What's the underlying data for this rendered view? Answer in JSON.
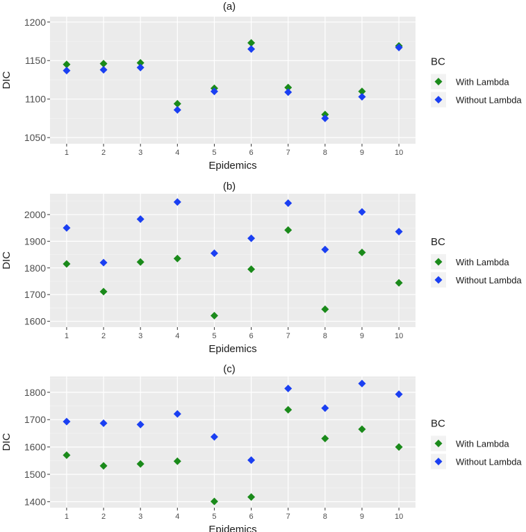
{
  "chart_data": [
    {
      "type": "scatter",
      "title": "(a)",
      "xlabel": "Epidemics",
      "ylabel": "DIC",
      "x": [
        1,
        2,
        3,
        4,
        5,
        6,
        7,
        8,
        9,
        10
      ],
      "x_tick_labels": [
        "1",
        "2",
        "3",
        "4",
        "5",
        "6",
        "7",
        "8",
        "9",
        "10"
      ],
      "y_ticks": [
        1050,
        1100,
        1150,
        1200
      ],
      "y_tick_labels": [
        "1050",
        "1100",
        "1150",
        "1200"
      ],
      "ylim": [
        1042,
        1207
      ],
      "legend_title": "BC",
      "grid": true,
      "series": [
        {
          "name": "With Lambda",
          "color": "#1a8a1a",
          "values": [
            1145,
            1146,
            1147,
            1094,
            1114,
            1173,
            1115,
            1080,
            1110,
            1169
          ]
        },
        {
          "name": "Without Lambda",
          "color": "#1a3ff2",
          "values": [
            1137,
            1138,
            1141,
            1086,
            1110,
            1165,
            1109,
            1075,
            1103,
            1167
          ]
        }
      ]
    },
    {
      "type": "scatter",
      "title": "(b)",
      "xlabel": "Epidemics",
      "ylabel": "DIC",
      "x": [
        1,
        2,
        3,
        4,
        5,
        6,
        7,
        8,
        9,
        10
      ],
      "x_tick_labels": [
        "1",
        "2",
        "3",
        "4",
        "5",
        "6",
        "7",
        "8",
        "9",
        "10"
      ],
      "y_ticks": [
        1600,
        1700,
        1800,
        1900,
        2000
      ],
      "y_tick_labels": [
        "1600",
        "1700",
        "1800",
        "1900",
        "2000"
      ],
      "ylim": [
        1578,
        2078
      ],
      "legend_title": "BC",
      "grid": true,
      "series": [
        {
          "name": "With Lambda",
          "color": "#1a8a1a",
          "values": [
            1815,
            1711,
            1822,
            1835,
            1621,
            1795,
            1942,
            1645,
            1858,
            1744
          ]
        },
        {
          "name": "Without Lambda",
          "color": "#1a3ff2",
          "values": [
            1950,
            1820,
            1983,
            2047,
            1855,
            1911,
            2043,
            1869,
            2010,
            1936
          ]
        }
      ]
    },
    {
      "type": "scatter",
      "title": "(c)",
      "xlabel": "Epidemics",
      "ylabel": "DIC",
      "x": [
        1,
        2,
        3,
        4,
        5,
        6,
        7,
        8,
        9,
        10
      ],
      "x_tick_labels": [
        "1",
        "2",
        "3",
        "4",
        "5",
        "6",
        "7",
        "8",
        "9",
        "10"
      ],
      "y_ticks": [
        1400,
        1500,
        1600,
        1700,
        1800
      ],
      "y_tick_labels": [
        "1400",
        "1500",
        "1600",
        "1700",
        "1800"
      ],
      "ylim": [
        1378,
        1858
      ],
      "legend_title": "BC",
      "grid": true,
      "series": [
        {
          "name": "With Lambda",
          "color": "#1a8a1a",
          "values": [
            1570,
            1531,
            1538,
            1548,
            1401,
            1417,
            1736,
            1631,
            1665,
            1600
          ]
        },
        {
          "name": "Without Lambda",
          "color": "#1a3ff2",
          "values": [
            1693,
            1687,
            1682,
            1721,
            1637,
            1552,
            1814,
            1742,
            1832,
            1793
          ]
        }
      ]
    }
  ]
}
